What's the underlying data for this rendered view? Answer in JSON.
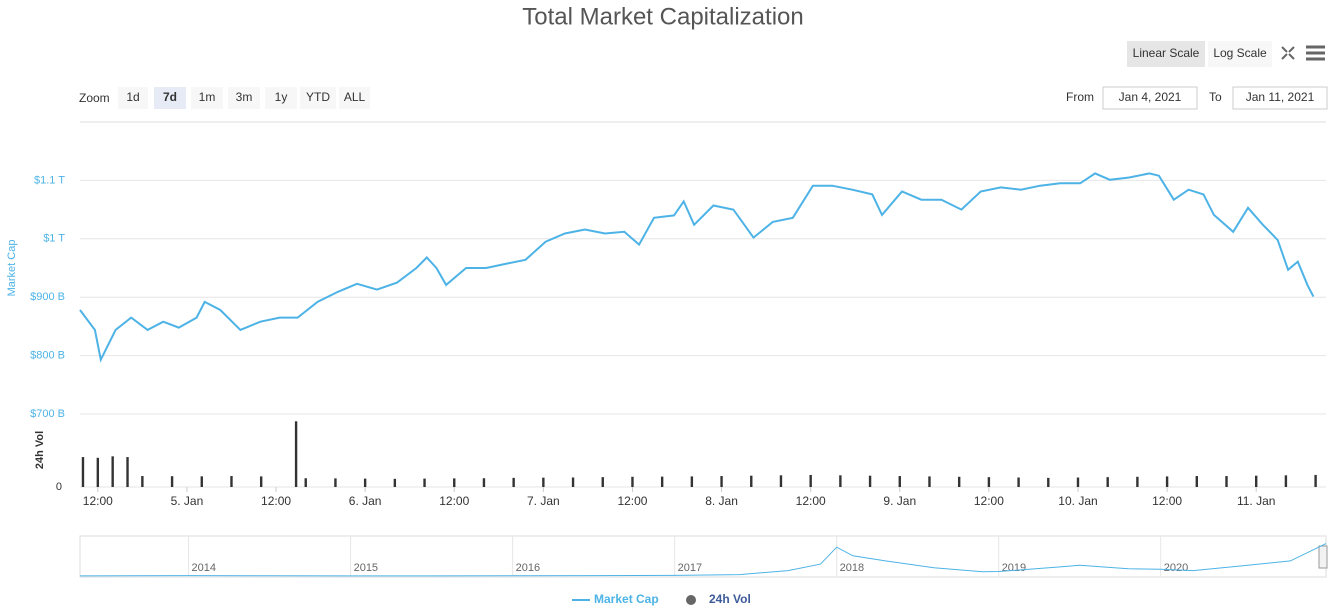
{
  "chart_data": {
    "type": "line",
    "title": "Total Market Capitalization",
    "scale_buttons": [
      "Linear Scale",
      "Log Scale"
    ],
    "active_scale": 0,
    "zoom_label": "Zoom",
    "zoom_buttons": [
      "1d",
      "7d",
      "1m",
      "3m",
      "1y",
      "YTD",
      "ALL"
    ],
    "active_zoom": 1,
    "from_label": "From",
    "from_date": "Jan 4, 2021",
    "to_label": "To",
    "to_date": "Jan 11, 2021",
    "y_label": "Market Cap",
    "y2_label": "24h Vol",
    "xlim": [
      9.6,
      177.4
    ],
    "xticks": [
      {
        "value": 12,
        "label": "12:00"
      },
      {
        "value": 24,
        "label": "5. Jan"
      },
      {
        "value": 36,
        "label": "12:00"
      },
      {
        "value": 48,
        "label": "6. Jan"
      },
      {
        "value": 60,
        "label": "12:00"
      },
      {
        "value": 72,
        "label": "7. Jan"
      },
      {
        "value": 84,
        "label": "12:00"
      },
      {
        "value": 96,
        "label": "8. Jan"
      },
      {
        "value": 108,
        "label": "12:00"
      },
      {
        "value": 120,
        "label": "9. Jan"
      },
      {
        "value": 132,
        "label": "12:00"
      },
      {
        "value": 144,
        "label": "10. Jan"
      },
      {
        "value": 156,
        "label": "12:00"
      },
      {
        "value": 168,
        "label": "11. Jan"
      }
    ],
    "ylim": [
      700,
      1200
    ],
    "yticks": [
      {
        "value": 700,
        "label": "$700 B"
      },
      {
        "value": 800,
        "label": "$800 B"
      },
      {
        "value": 900,
        "label": "$900 B"
      },
      {
        "value": 1000,
        "label": "$1 T"
      },
      {
        "value": 1100,
        "label": "$1.1 T"
      }
    ],
    "y2lim": [
      0,
      1000
    ],
    "y2ticks": [
      0
    ],
    "grid": true,
    "series": [
      {
        "name": "Market Cap",
        "color": "#4db3e6",
        "x": [
          9.6,
          11.6,
          12.4,
          14.4,
          16.5,
          18.7,
          20.8,
          22.9,
          25.3,
          26.4,
          28.5,
          31.2,
          33.9,
          36.5,
          38.9,
          41.6,
          44.3,
          46.9,
          49.6,
          52.3,
          54.9,
          56.3,
          57.6,
          58.9,
          61.6,
          64.3,
          66.9,
          69.6,
          72.3,
          74.9,
          77.6,
          80.3,
          82.9,
          84.9,
          86.9,
          89.6,
          90.9,
          92.3,
          94.9,
          97.6,
          100.3,
          102.9,
          105.6,
          108.3,
          110.9,
          113.6,
          116.3,
          117.6,
          120.3,
          122.9,
          125.6,
          128.3,
          130.9,
          133.6,
          136.3,
          138.9,
          141.6,
          144.3,
          146.3,
          148.3,
          150.9,
          153.6,
          154.9,
          156.9,
          158.9,
          160.9,
          162.3,
          164.9,
          166.9,
          168.9,
          170.9,
          172.3,
          173.6,
          174.9,
          175.7
        ],
        "values": [
          878,
          844,
          793,
          844,
          865,
          844,
          858,
          848,
          865,
          892,
          878,
          844,
          858,
          865,
          865,
          892,
          909,
          923,
          913,
          925,
          950,
          968,
          950,
          921,
          950,
          950,
          957,
          964,
          995,
          1009,
          1016,
          1009,
          1012,
          990,
          1036,
          1040,
          1064,
          1024,
          1057,
          1050,
          1002,
          1029,
          1036,
          1091,
          1091,
          1084,
          1076,
          1041,
          1081,
          1067,
          1067,
          1050,
          1081,
          1088,
          1084,
          1091,
          1095,
          1095,
          1112,
          1101,
          1105,
          1112,
          1108,
          1067,
          1084,
          1076,
          1041,
          1012,
          1053,
          1024,
          998,
          947,
          961,
          921,
          901
        ]
      },
      {
        "name": "24h Vol",
        "color": "#333333",
        "type": "column",
        "axis": "y2",
        "x": [
          10,
          12,
          14,
          16,
          18,
          22,
          26,
          30,
          34,
          38.7,
          40,
          44,
          48,
          52,
          56,
          60,
          64,
          68,
          72,
          76,
          80,
          84,
          88,
          92,
          96,
          100,
          104,
          108,
          112,
          116,
          120,
          124,
          128,
          132,
          136,
          140,
          144,
          148,
          152,
          156,
          160,
          164,
          168,
          172,
          176
        ],
        "values": [
          410,
          400,
          420,
          410,
          150,
          148,
          146,
          150,
          145,
          900,
          120,
          118,
          115,
          112,
          115,
          118,
          120,
          125,
          128,
          130,
          135,
          140,
          142,
          145,
          150,
          155,
          160,
          165,
          160,
          155,
          150,
          145,
          140,
          135,
          130,
          125,
          130,
          135,
          140,
          145,
          150,
          150,
          155,
          160,
          165
        ]
      }
    ],
    "navigator": {
      "color": "#4db3e6",
      "xlim": [
        2013.33,
        2021.02
      ],
      "xticks": [
        2014,
        2015,
        2016,
        2017,
        2018,
        2019,
        2020
      ],
      "ylim": [
        0,
        1000
      ],
      "x": [
        2013.33,
        2014,
        2014.5,
        2015,
        2015.5,
        2016,
        2016.5,
        2017,
        2017.4,
        2017.7,
        2017.9,
        2018.0,
        2018.1,
        2018.3,
        2018.6,
        2018.9,
        2019.0,
        2019.4,
        2019.5,
        2019.8,
        2020.0,
        2020.2,
        2020.5,
        2020.8,
        2021.02
      ],
      "values": [
        2,
        11,
        6,
        4,
        4,
        7,
        10,
        18,
        40,
        150,
        330,
        800,
        560,
        420,
        230,
        120,
        125,
        260,
        300,
        200,
        190,
        150,
        280,
        420,
        900
      ]
    }
  }
}
